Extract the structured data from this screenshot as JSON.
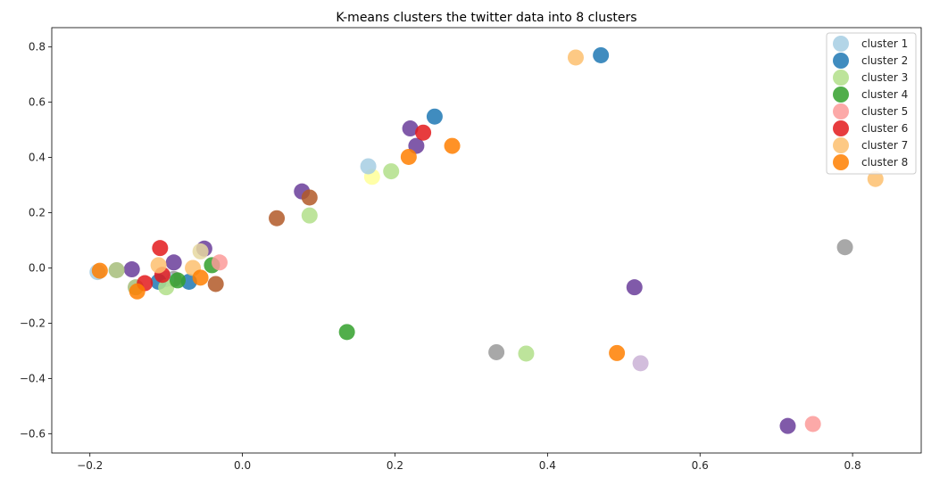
{
  "chart_data": {
    "type": "scatter",
    "title": "K-means clusters the  twitter data into 8 clusters",
    "xlabel": "",
    "ylabel": "",
    "xlim": [
      -0.25,
      0.89
    ],
    "ylim": [
      -0.67,
      0.87
    ],
    "xticks": [
      -0.2,
      0.0,
      0.2,
      0.4,
      0.6,
      0.8
    ],
    "xtick_labels": [
      "−0.2",
      "0.0",
      "0.2",
      "0.4",
      "0.6",
      "0.8"
    ],
    "yticks": [
      -0.6,
      -0.4,
      -0.2,
      0.0,
      0.2,
      0.4,
      0.6,
      0.8
    ],
    "ytick_labels": [
      "−0.6",
      "−0.4",
      "−0.2",
      "0.0",
      "0.2",
      "0.4",
      "0.6",
      "0.8"
    ],
    "grid": false,
    "legend_position": "top-right",
    "series": [
      {
        "name": "cluster 1",
        "color": "#a6cee3",
        "points": [
          [
            0.165,
            0.368
          ],
          [
            -0.1,
            -0.04
          ],
          [
            -0.19,
            -0.015
          ]
        ]
      },
      {
        "name": "cluster 2",
        "color": "#1f78b4",
        "points": [
          [
            0.47,
            0.77
          ],
          [
            0.252,
            0.548
          ],
          [
            -0.07,
            -0.05
          ],
          [
            -0.11,
            -0.05
          ]
        ]
      },
      {
        "name": "cluster 3",
        "color": "#b2df8a",
        "points": [
          [
            0.088,
            0.19
          ],
          [
            -0.1,
            -0.07
          ],
          [
            0.372,
            -0.31
          ],
          [
            0.195,
            0.35
          ]
        ]
      },
      {
        "name": "cluster 4",
        "color": "#33a02c",
        "points": [
          [
            0.137,
            -0.232
          ],
          [
            -0.04,
            0.01
          ],
          [
            -0.085,
            -0.045
          ]
        ]
      },
      {
        "name": "cluster 5",
        "color": "#fb9a99",
        "points": [
          [
            0.748,
            -0.565
          ],
          [
            -0.03,
            0.02
          ]
        ]
      },
      {
        "name": "cluster 6",
        "color": "#e31a1c",
        "points": [
          [
            0.237,
            0.49
          ],
          [
            -0.108,
            0.072
          ],
          [
            -0.128,
            -0.055
          ],
          [
            -0.105,
            -0.025
          ]
        ]
      },
      {
        "name": "cluster 7",
        "color": "#fdbf6f",
        "points": [
          [
            0.437,
            0.762
          ],
          [
            0.83,
            0.322
          ],
          [
            -0.065,
            0.0
          ],
          [
            -0.11,
            0.01
          ]
        ]
      },
      {
        "name": "cluster 8",
        "color": "#ff7f00",
        "points": [
          [
            0.275,
            0.442
          ],
          [
            0.218,
            0.402
          ],
          [
            0.491,
            -0.308
          ],
          [
            -0.187,
            -0.01
          ],
          [
            -0.138,
            -0.085
          ],
          [
            -0.055,
            -0.035
          ]
        ]
      }
    ],
    "unlabeled_points": [
      {
        "color": "#6a3d9a",
        "points": [
          [
            0.22,
            0.505
          ],
          [
            0.228,
            0.442
          ],
          [
            0.078,
            0.277
          ],
          [
            0.514,
            -0.07
          ],
          [
            0.715,
            -0.572
          ],
          [
            -0.145,
            -0.005
          ],
          [
            -0.05,
            0.07
          ],
          [
            -0.09,
            0.02
          ]
        ]
      },
      {
        "color": "#b15928",
        "points": [
          [
            0.045,
            0.18
          ],
          [
            0.088,
            0.255
          ],
          [
            -0.035,
            -0.058
          ]
        ]
      },
      {
        "color": "#ffff99",
        "points": [
          [
            0.17,
            0.33
          ]
        ]
      },
      {
        "color": "#cab2d6",
        "points": [
          [
            0.522,
            -0.345
          ]
        ]
      },
      {
        "color": "#999999",
        "points": [
          [
            0.79,
            0.075
          ],
          [
            0.333,
            -0.305
          ],
          [
            -0.09,
            -0.04
          ]
        ]
      },
      {
        "color": "#a6bd7a",
        "points": [
          [
            -0.165,
            -0.008
          ],
          [
            -0.14,
            -0.07
          ]
        ]
      },
      {
        "color": "#e6d8a0",
        "points": [
          [
            -0.055,
            0.06
          ]
        ]
      }
    ]
  }
}
